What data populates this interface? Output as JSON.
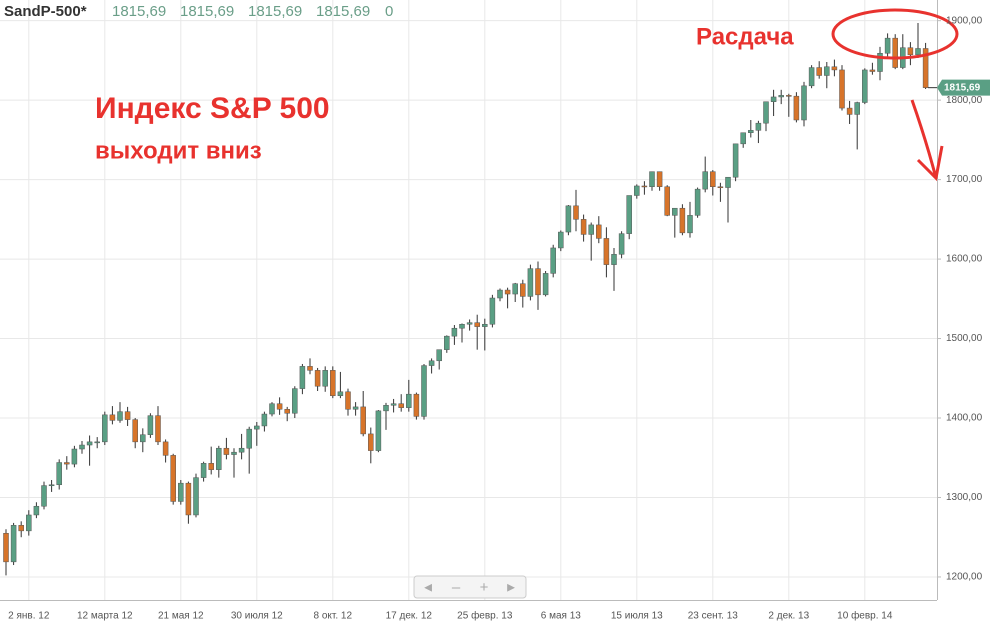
{
  "header": {
    "symbol": "SandP-500*",
    "quotes": [
      "1815,69",
      "1815,69",
      "1815,69",
      "1815,69",
      "0"
    ]
  },
  "chart_data": {
    "type": "candlestick",
    "annotations": [
      "Расдача",
      "Индекс S&P 500",
      "выходит вниз"
    ],
    "categories": [
      null,
      null,
      null,
      "2 янв. 12",
      null,
      null,
      null,
      null,
      null,
      null,
      null,
      null,
      null,
      "12 марта 12",
      null,
      null,
      null,
      null,
      null,
      null,
      null,
      null,
      null,
      "21 мая 12",
      null,
      null,
      null,
      null,
      null,
      null,
      null,
      null,
      null,
      "30 июля 12",
      null,
      null,
      null,
      null,
      null,
      null,
      null,
      null,
      null,
      "8 окт. 12",
      null,
      null,
      null,
      null,
      null,
      null,
      null,
      null,
      null,
      "17 дек. 12",
      null,
      null,
      null,
      null,
      null,
      null,
      null,
      null,
      null,
      "25 февр. 13",
      null,
      null,
      null,
      null,
      null,
      null,
      null,
      null,
      null,
      "6 мая 13",
      null,
      null,
      null,
      null,
      null,
      null,
      null,
      null,
      null,
      "15 июля 13",
      null,
      null,
      null,
      null,
      null,
      null,
      null,
      null,
      null,
      "23 сент. 13",
      null,
      null,
      null,
      null,
      null,
      null,
      null,
      null,
      null,
      "2 дек. 13",
      null,
      null,
      null,
      null,
      null,
      null,
      null,
      null,
      null,
      "10 февр. 14",
      null,
      null,
      null,
      null,
      null,
      null,
      null,
      null
    ],
    "open": [
      1255,
      1219,
      1265,
      1258,
      1278,
      1289,
      1315,
      1316,
      1344,
      1342,
      1361,
      1366,
      1370,
      1370,
      1404,
      1397,
      1408,
      1398,
      1370,
      1379,
      1403,
      1370,
      1353,
      1295,
      1318,
      1278,
      1325,
      1343,
      1335,
      1362,
      1354,
      1357,
      1362,
      1386,
      1390,
      1405,
      1418,
      1411,
      1406,
      1437,
      1465,
      1460,
      1440,
      1460,
      1428,
      1433,
      1411,
      1414,
      1380,
      1359,
      1409,
      1416,
      1418,
      1413,
      1430,
      1402,
      1466,
      1472,
      1486,
      1503,
      1513,
      1518,
      1520,
      1515,
      1518,
      1551,
      1561,
      1556,
      1569,
      1553,
      1588,
      1555,
      1582,
      1614,
      1634,
      1667,
      1650,
      1631,
      1643,
      1626,
      1593,
      1606,
      1632,
      1680,
      1692,
      1691,
      1710,
      1691,
      1655,
      1664,
      1633,
      1655,
      1688,
      1710,
      1691,
      1690,
      1703,
      1745,
      1759,
      1762,
      1771,
      1798,
      1804,
      1806,
      1805,
      1775,
      1818,
      1841,
      1831,
      1842,
      1838,
      1790,
      1782,
      1797,
      1838,
      1836,
      1859,
      1878,
      1841,
      1866,
      1857,
      1865
    ],
    "high": [
      1260,
      1268,
      1270,
      1284,
      1294,
      1320,
      1322,
      1348,
      1352,
      1365,
      1371,
      1378,
      1376,
      1408,
      1415,
      1420,
      1414,
      1400,
      1387,
      1406,
      1415,
      1373,
      1355,
      1322,
      1320,
      1330,
      1345,
      1364,
      1365,
      1375,
      1362,
      1380,
      1389,
      1395,
      1408,
      1420,
      1426,
      1414,
      1440,
      1468,
      1475,
      1463,
      1465,
      1465,
      1458,
      1437,
      1420,
      1434,
      1388,
      1410,
      1419,
      1424,
      1430,
      1448,
      1432,
      1468,
      1475,
      1486,
      1504,
      1517,
      1519,
      1524,
      1530,
      1525,
      1555,
      1563,
      1564,
      1570,
      1574,
      1593,
      1597,
      1585,
      1618,
      1636,
      1668,
      1687,
      1656,
      1646,
      1654,
      1640,
      1614,
      1635,
      1680,
      1694,
      1698,
      1710,
      1710,
      1693,
      1664,
      1669,
      1672,
      1690,
      1729,
      1712,
      1696,
      1703,
      1745,
      1759,
      1775,
      1774,
      1798,
      1813,
      1813,
      1808,
      1810,
      1823,
      1844,
      1849,
      1848,
      1851,
      1844,
      1799,
      1798,
      1840,
      1847,
      1867,
      1884,
      1883,
      1883,
      1873,
      1897,
      1872
    ],
    "low": [
      1202,
      1215,
      1250,
      1252,
      1274,
      1285,
      1307,
      1310,
      1335,
      1338,
      1355,
      1340,
      1362,
      1366,
      1392,
      1394,
      1390,
      1362,
      1357,
      1375,
      1366,
      1344,
      1291,
      1291,
      1267,
      1275,
      1320,
      1329,
      1325,
      1348,
      1325,
      1348,
      1330,
      1365,
      1383,
      1402,
      1404,
      1396,
      1400,
      1430,
      1455,
      1434,
      1433,
      1425,
      1425,
      1403,
      1403,
      1377,
      1343,
      1357,
      1385,
      1407,
      1408,
      1408,
      1398,
      1398,
      1456,
      1461,
      1482,
      1492,
      1495,
      1510,
      1486,
      1485,
      1514,
      1547,
      1538,
      1546,
      1539,
      1548,
      1536,
      1553,
      1577,
      1610,
      1630,
      1635,
      1622,
      1598,
      1620,
      1577,
      1560,
      1601,
      1625,
      1676,
      1681,
      1686,
      1686,
      1654,
      1627,
      1630,
      1627,
      1652,
      1684,
      1680,
      1672,
      1646,
      1698,
      1740,
      1753,
      1746,
      1761,
      1780,
      1795,
      1779,
      1772,
      1767,
      1815,
      1827,
      1815,
      1830,
      1787,
      1770,
      1738,
      1795,
      1832,
      1825,
      1855,
      1839,
      1839,
      1844,
      1853,
      1814
    ],
    "close": [
      1219,
      1265,
      1258,
      1278,
      1289,
      1315,
      1316,
      1344,
      1342,
      1361,
      1366,
      1370,
      1370,
      1404,
      1397,
      1408,
      1398,
      1370,
      1379,
      1403,
      1370,
      1353,
      1295,
      1318,
      1278,
      1325,
      1343,
      1335,
      1362,
      1354,
      1357,
      1362,
      1386,
      1390,
      1405,
      1418,
      1411,
      1406,
      1437,
      1465,
      1460,
      1440,
      1460,
      1428,
      1433,
      1411,
      1414,
      1380,
      1359,
      1409,
      1416,
      1418,
      1413,
      1430,
      1402,
      1466,
      1472,
      1486,
      1503,
      1513,
      1518,
      1520,
      1515,
      1518,
      1551,
      1561,
      1556,
      1569,
      1553,
      1588,
      1555,
      1582,
      1614,
      1634,
      1667,
      1650,
      1631,
      1643,
      1626,
      1593,
      1606,
      1632,
      1680,
      1692,
      1691,
      1710,
      1691,
      1655,
      1664,
      1633,
      1655,
      1688,
      1710,
      1691,
      1690,
      1703,
      1745,
      1759,
      1762,
      1771,
      1798,
      1804,
      1806,
      1805,
      1775,
      1818,
      1841,
      1831,
      1842,
      1838,
      1790,
      1782,
      1797,
      1838,
      1836,
      1859,
      1878,
      1841,
      1866,
      1857,
      1865,
      1815.69
    ],
    "up_color": "#5a9f84",
    "down_color": "#d7742a",
    "last_price": {
      "value": 1815.69,
      "label": "1815,69"
    },
    "ylim": [
      1171,
      1926
    ],
    "yticks": [
      {
        "value": 1200,
        "label": "1200,00"
      },
      {
        "value": 1300,
        "label": "1300,00"
      },
      {
        "value": 1400,
        "label": "1400,00"
      },
      {
        "value": 1500,
        "label": "1500,00"
      },
      {
        "value": 1600,
        "label": "1600,00"
      },
      {
        "value": 1700,
        "label": "1700,00"
      },
      {
        "value": 1800,
        "label": "1800,00"
      },
      {
        "value": 1900,
        "label": "1900,00"
      }
    ],
    "grid": true
  }
}
